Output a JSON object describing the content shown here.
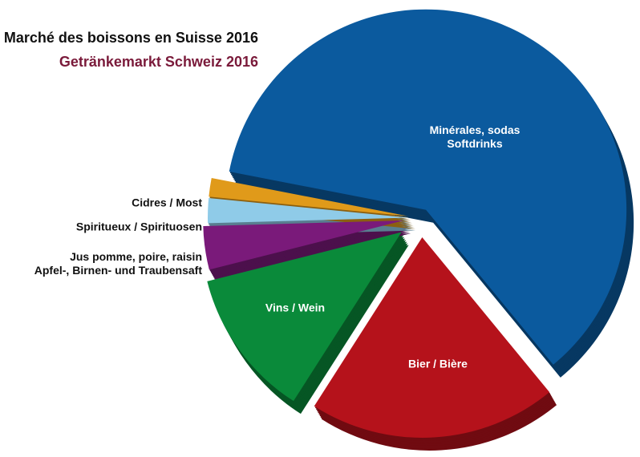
{
  "chart_data": {
    "type": "pie",
    "title": "Marché des boissons en Suisse 2016",
    "subtitle": "Getränkemarkt Schweiz 2016",
    "categories": [
      [
        "Minérales, sodas",
        "Softdrinks"
      ],
      [
        "Bier / Bière"
      ],
      [
        "Vins / Wein"
      ],
      [
        "Jus pomme, poire, raisin",
        "Apfel-, Birnen- und Traubensaft"
      ],
      [
        "Spiritueux / Spirituosen"
      ],
      [
        "Cidres / Most"
      ]
    ],
    "values": [
      61,
      20,
      12,
      3.5,
      2,
      1.5
    ],
    "colors": [
      "#0b5a9e",
      "#b5121b",
      "#0a8a3a",
      "#7a1a7a",
      "#8fcbe8",
      "#e09a1a"
    ]
  }
}
